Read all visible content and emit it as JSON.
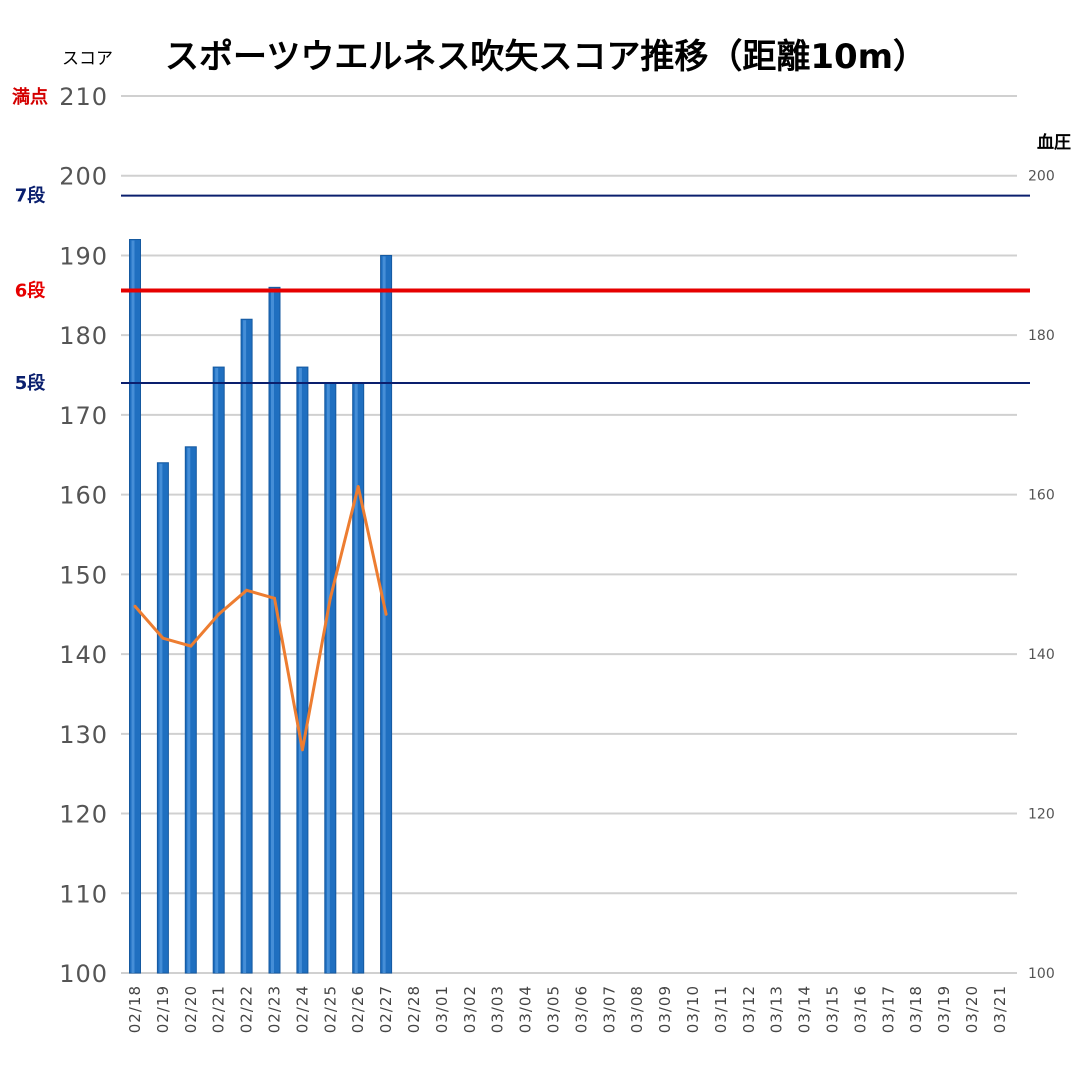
{
  "chart_data": {
    "type": "bar",
    "title": "スポーツウエルネス吹矢スコア推移（距離10m）",
    "ylabel": "スコア",
    "y2label": "血圧",
    "ylim": [
      100,
      210
    ],
    "yticks": [
      100,
      110,
      120,
      130,
      140,
      150,
      160,
      170,
      180,
      190,
      200,
      210
    ],
    "y2lim": [
      100,
      210
    ],
    "y2ticks": [
      100,
      120,
      140,
      160,
      180,
      200
    ],
    "grid": true,
    "categories": [
      "02/18",
      "02/19",
      "02/20",
      "02/21",
      "02/22",
      "02/23",
      "02/24",
      "02/25",
      "02/26",
      "02/27",
      "02/28",
      "03/01",
      "03/02",
      "03/03",
      "03/04",
      "03/05",
      "03/06",
      "03/07",
      "03/08",
      "03/09",
      "03/10",
      "03/11",
      "03/12",
      "03/13",
      "03/14",
      "03/15",
      "03/16",
      "03/17",
      "03/18",
      "03/19",
      "03/20",
      "03/21"
    ],
    "series": [
      {
        "type": "bar",
        "axis": "left",
        "color": "#1f6fc0",
        "values": [
          192,
          164,
          166,
          176,
          182,
          186,
          176,
          174,
          174,
          190,
          null,
          null,
          null,
          null,
          null,
          null,
          null,
          null,
          null,
          null,
          null,
          null,
          null,
          null,
          null,
          null,
          null,
          null,
          null,
          null,
          null,
          null
        ]
      },
      {
        "type": "line",
        "axis": "right",
        "color": "#ed7d31",
        "values": [
          146,
          142,
          141,
          145,
          148,
          147,
          128,
          147,
          161,
          145,
          null,
          null,
          null,
          null,
          null,
          null,
          null,
          null,
          null,
          null,
          null,
          null,
          null,
          null,
          null,
          null,
          null,
          null,
          null,
          null,
          null,
          null
        ]
      }
    ],
    "reference_lines": [
      {
        "label": "満点",
        "value": 210,
        "color": "#d40000",
        "show_line": false
      },
      {
        "label": "7段",
        "value": 197.5,
        "color": "#0a1f6e",
        "show_line": true
      },
      {
        "label": "6段",
        "value": 185.6,
        "color": "#e60000",
        "show_line": true
      },
      {
        "label": "5段",
        "value": 174,
        "color": "#0a1f6e",
        "show_line": true
      }
    ]
  }
}
